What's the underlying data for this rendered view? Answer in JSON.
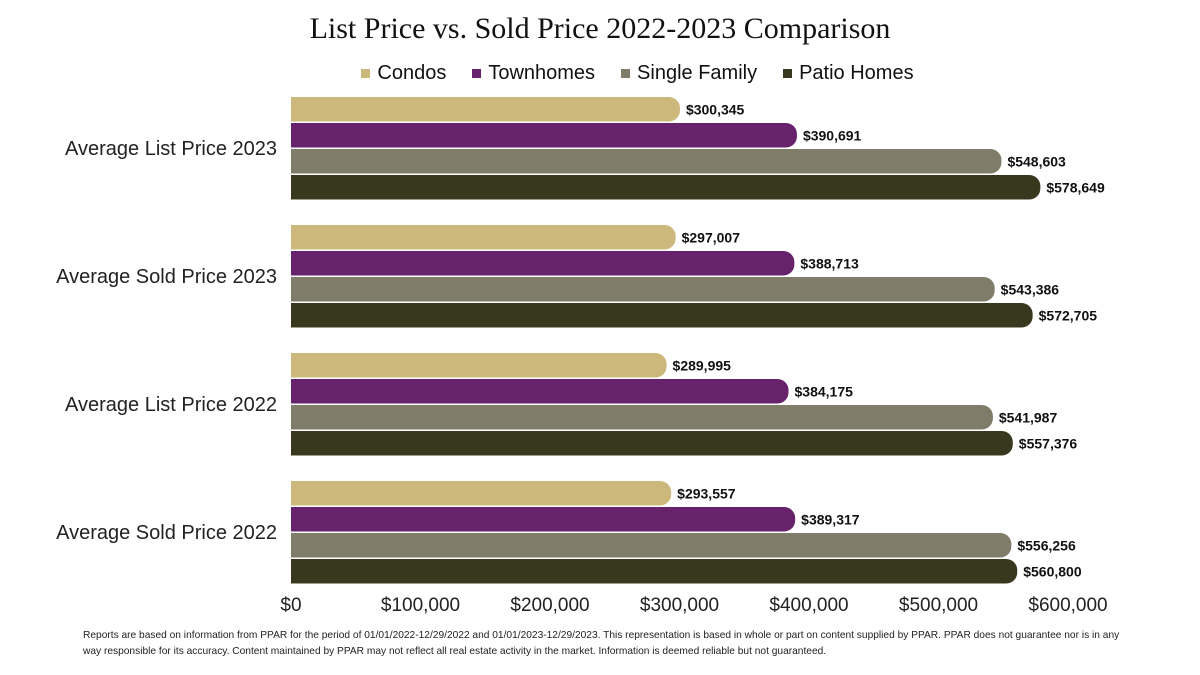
{
  "chart_data": {
    "type": "bar",
    "orientation": "horizontal",
    "title": "List Price vs. Sold Price 2022-2023 Comparison",
    "categories": [
      "Average List Price 2023",
      "Average Sold Price 2023",
      "Average List Price 2022",
      "Average Sold Price 2022"
    ],
    "series": [
      {
        "name": "Condos",
        "color": "#CDB87C",
        "values": [
          300345,
          297007,
          289995,
          293557
        ],
        "labels": [
          "$300,345",
          "$297,007",
          "$289,995",
          "$293,557"
        ]
      },
      {
        "name": "Townhomes",
        "color": "#66226A",
        "values": [
          390691,
          388713,
          384175,
          389317
        ],
        "labels": [
          "$390,691",
          "$388,713",
          "$384,175",
          "$389,317"
        ]
      },
      {
        "name": "Single Family",
        "color": "#7F7C69",
        "values": [
          548603,
          543386,
          541987,
          556256
        ],
        "labels": [
          "$548,603",
          "$543,386",
          "$541,987",
          "$556,256"
        ]
      },
      {
        "name": "Patio Homes",
        "color": "#38381F",
        "values": [
          578649,
          572705,
          557376,
          560800
        ],
        "labels": [
          "$578,649",
          "$572,705",
          "$557,376",
          "$560,800"
        ]
      }
    ],
    "xlim": [
      0,
      600000
    ],
    "xticks": [
      "$0",
      "$100,000",
      "$200,000",
      "$300,000",
      "$400,000",
      "$500,000",
      "$600,000"
    ],
    "grid": false,
    "legend_position": "top"
  },
  "footnote": "Reports are based on information from PPAR for the period of 01/01/2022-12/29/2022 and 01/01/2023-12/29/2023. This representation is based in whole or part on content supplied by PPAR. PPAR does not guarantee nor is in any way responsible for its accuracy. Content maintained by PPAR may not reflect all real estate activity in the market. Information is deemed reliable but not guaranteed."
}
